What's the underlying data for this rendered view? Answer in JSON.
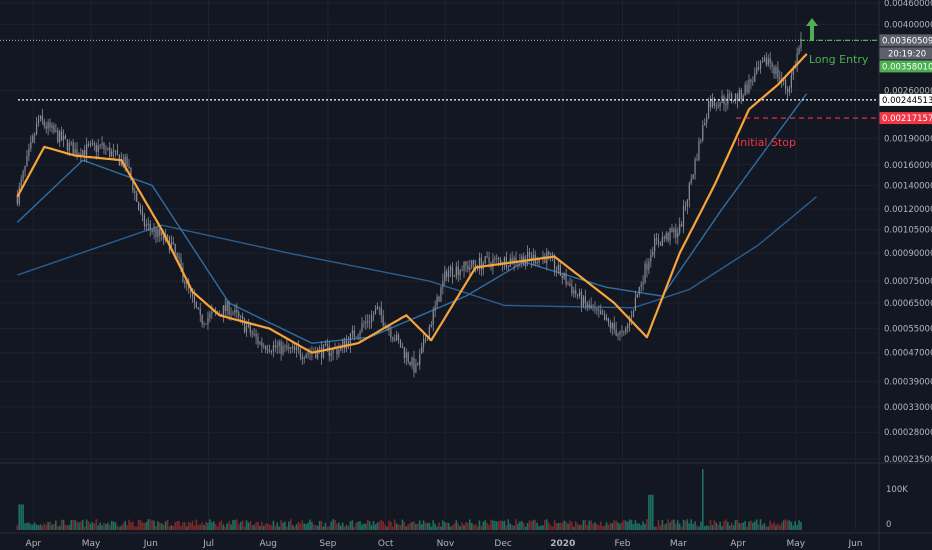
{
  "colors": {
    "background": "#131722",
    "grid": "#1e2230",
    "candle": "#8a8d97",
    "ema_fast": "#f7a43a",
    "ma_mid": "#2f6fa5",
    "ma_slow": "#2a5f93",
    "long_entry": "#4caf50",
    "stop": "#f23645",
    "support": "#ffffff",
    "vol_up": "#1f6f63",
    "vol_down": "#7a2a2a"
  },
  "chart_data": {
    "type": "candlestick",
    "y_scale": "log",
    "ylim": [
      0.000235,
      0.0046
    ],
    "x_months": [
      "Apr",
      "May",
      "Jun",
      "Jul",
      "Aug",
      "Sep",
      "Oct",
      "Nov",
      "Dec",
      "2020",
      "Feb",
      "Mar",
      "Apr",
      "May",
      "Jun"
    ],
    "y_ticks": [
      "0.00460000",
      "0.00400000",
      "0.00260000",
      "0.00190000",
      "0.00160000",
      "0.00140000",
      "0.00120000",
      "0.00105000",
      "0.00090000",
      "0.00075000",
      "0.00065000",
      "0.00055000",
      "0.00047000",
      "0.00039000",
      "0.00033000",
      "0.00028000",
      "0.00023500"
    ],
    "price_key_points": [
      {
        "date": "2019-04-01",
        "price": 0.0013
      },
      {
        "date": "2019-04-12",
        "price": 0.00215
      },
      {
        "date": "2019-05-01",
        "price": 0.00175
      },
      {
        "date": "2019-05-15",
        "price": 0.0018
      },
      {
        "date": "2019-05-28",
        "price": 0.0016
      },
      {
        "date": "2019-06-05",
        "price": 0.0011
      },
      {
        "date": "2019-06-20",
        "price": 0.00095
      },
      {
        "date": "2019-07-05",
        "price": 0.00058
      },
      {
        "date": "2019-07-20",
        "price": 0.00063
      },
      {
        "date": "2019-08-05",
        "price": 0.0005
      },
      {
        "date": "2019-08-25",
        "price": 0.00047
      },
      {
        "date": "2019-09-15",
        "price": 0.00048
      },
      {
        "date": "2019-10-05",
        "price": 0.00062
      },
      {
        "date": "2019-10-25",
        "price": 0.00042
      },
      {
        "date": "2019-11-10",
        "price": 0.0008
      },
      {
        "date": "2019-12-01",
        "price": 0.00085
      },
      {
        "date": "2020-01-01",
        "price": 0.00088
      },
      {
        "date": "2020-01-20",
        "price": 0.00065
      },
      {
        "date": "2020-02-10",
        "price": 0.00052
      },
      {
        "date": "2020-02-25",
        "price": 0.00095
      },
      {
        "date": "2020-03-10",
        "price": 0.00105
      },
      {
        "date": "2020-03-25",
        "price": 0.0024
      },
      {
        "date": "2020-04-10",
        "price": 0.0025
      },
      {
        "date": "2020-04-25",
        "price": 0.0032
      },
      {
        "date": "2020-05-05",
        "price": 0.0026
      },
      {
        "date": "2020-05-12",
        "price": 0.00358
      }
    ],
    "ema_fast_key_points": [
      {
        "date": "2019-04-01",
        "price": 0.0013
      },
      {
        "date": "2019-04-15",
        "price": 0.0018
      },
      {
        "date": "2019-05-01",
        "price": 0.0017
      },
      {
        "date": "2019-05-25",
        "price": 0.00165
      },
      {
        "date": "2019-06-15",
        "price": 0.00105
      },
      {
        "date": "2019-07-01",
        "price": 0.0007
      },
      {
        "date": "2019-07-15",
        "price": 0.0006
      },
      {
        "date": "2019-08-10",
        "price": 0.00055
      },
      {
        "date": "2019-09-01",
        "price": 0.00047
      },
      {
        "date": "2019-09-25",
        "price": 0.0005
      },
      {
        "date": "2019-10-20",
        "price": 0.0006
      },
      {
        "date": "2019-11-02",
        "price": 0.00051
      },
      {
        "date": "2019-11-25",
        "price": 0.00082
      },
      {
        "date": "2020-01-05",
        "price": 0.00088
      },
      {
        "date": "2020-02-05",
        "price": 0.00065
      },
      {
        "date": "2020-02-22",
        "price": 0.00052
      },
      {
        "date": "2020-03-10",
        "price": 0.0009
      },
      {
        "date": "2020-03-28",
        "price": 0.0014
      },
      {
        "date": "2020-04-15",
        "price": 0.0023
      },
      {
        "date": "2020-04-30",
        "price": 0.0027
      },
      {
        "date": "2020-05-15",
        "price": 0.0033
      }
    ],
    "ma_mid_key_points": [
      {
        "date": "2019-04-01",
        "price": 0.0011
      },
      {
        "date": "2019-05-05",
        "price": 0.00165
      },
      {
        "date": "2019-06-10",
        "price": 0.0014
      },
      {
        "date": "2019-07-20",
        "price": 0.00065
      },
      {
        "date": "2019-09-01",
        "price": 0.0005
      },
      {
        "date": "2019-10-01",
        "price": 0.00052
      },
      {
        "date": "2019-11-20",
        "price": 0.00068
      },
      {
        "date": "2019-12-20",
        "price": 0.00085
      },
      {
        "date": "2020-02-01",
        "price": 0.00072
      },
      {
        "date": "2020-03-01",
        "price": 0.00068
      },
      {
        "date": "2020-04-01",
        "price": 0.0012
      },
      {
        "date": "2020-05-15",
        "price": 0.00255
      }
    ],
    "ma_slow_key_points": [
      {
        "date": "2019-04-01",
        "price": 0.00078
      },
      {
        "date": "2019-06-15",
        "price": 0.00108
      },
      {
        "date": "2019-08-20",
        "price": 0.0009
      },
      {
        "date": "2019-11-01",
        "price": 0.00075
      },
      {
        "date": "2019-12-10",
        "price": 0.00064
      },
      {
        "date": "2020-02-15",
        "price": 0.00063
      },
      {
        "date": "2020-03-15",
        "price": 0.00071
      },
      {
        "date": "2020-04-20",
        "price": 0.00095
      },
      {
        "date": "2020-05-20",
        "price": 0.0013
      }
    ],
    "levels": [
      {
        "name": "current-price",
        "price": 0.00360509,
        "tag": "0.00360509",
        "style": "dotted-gray"
      },
      {
        "name": "long-entry",
        "price": 0.0035801,
        "tag": "0.00358010",
        "style": "dashed-green"
      },
      {
        "name": "support",
        "price": 0.00244513,
        "tag": "0.00244513",
        "style": "dotted-white"
      },
      {
        "name": "initial-stop",
        "price": 0.00217157,
        "tag": "0.00217157",
        "style": "dashed-red"
      }
    ],
    "timer_label": "20:19:20",
    "annotations": {
      "long_entry": "Long Entry",
      "initial_stop": "Initial Stop"
    },
    "volume_axis": [
      "100K",
      "0"
    ]
  }
}
